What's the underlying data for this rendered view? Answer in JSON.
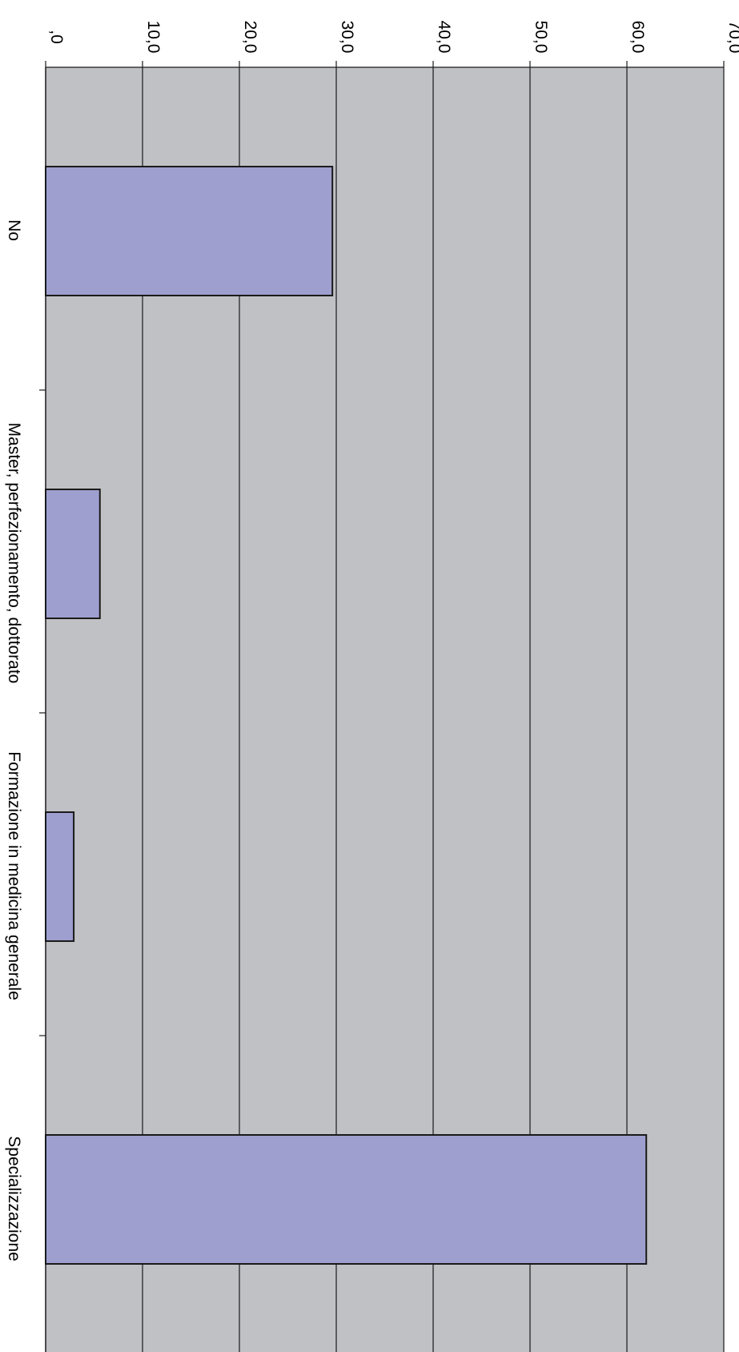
{
  "chart_data": {
    "type": "bar",
    "orientation": "horizontal",
    "categories": [
      "No",
      "Master, perfezionamento, dottorato",
      "Formazione in medicina generale",
      "Specializzazione"
    ],
    "values": [
      29.6,
      5.6,
      2.9,
      62.0
    ],
    "title": "",
    "xlabel": "",
    "ylabel": "",
    "xlim": [
      0,
      70
    ],
    "ticks": [
      0,
      10,
      20,
      30,
      40,
      50,
      60,
      70
    ],
    "tick_labels": [
      ",0",
      "10,0",
      "20,0",
      "30,0",
      "40,0",
      "50,0",
      "60,0",
      "70,0"
    ],
    "grid": true,
    "legend": "none",
    "colors": {
      "plot_background": "#c0c1c5",
      "bar_fill": "#9e9fcf",
      "bar_stroke": "#1a1a1a",
      "grid": "#1a1a1a"
    }
  }
}
